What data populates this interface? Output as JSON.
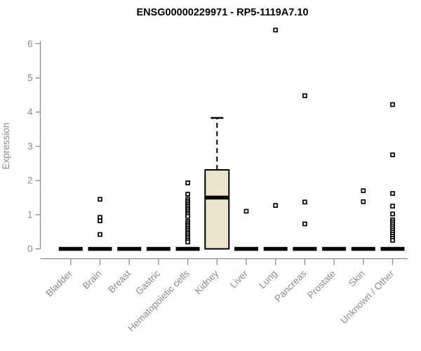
{
  "colors": {
    "background": "#ffffff",
    "title": "#000000",
    "axis": "#8c8c8c",
    "box_fill": "#EAE5CD",
    "box_stroke": "#000000",
    "outlier_fill": "#ffffff"
  },
  "chart_data": {
    "type": "boxplot",
    "title": "ENSG00000229971 - RP5-1119A7.10",
    "xlabel": "",
    "ylabel": "Expression",
    "ylim": [
      0,
      6.5
    ],
    "yticks": [
      0,
      1,
      2,
      3,
      4,
      5,
      6
    ],
    "grid": false,
    "legend": "none",
    "categories": [
      "Bladder",
      "Brain",
      "Breast",
      "Gastric",
      "Hematopoietic cells",
      "Kidney",
      "Liver",
      "Lung",
      "Pancreas",
      "Prostate",
      "Skin",
      "Unknown / Other"
    ],
    "series": [
      {
        "name": "Bladder",
        "q1": 0,
        "median": 0,
        "q3": 0,
        "whisker_low": 0,
        "whisker_high": 0,
        "outliers": []
      },
      {
        "name": "Brain",
        "q1": 0,
        "median": 0,
        "q3": 0,
        "whisker_low": 0,
        "whisker_high": 0,
        "outliers": [
          1.45,
          0.92,
          0.82,
          0.42
        ]
      },
      {
        "name": "Breast",
        "q1": 0,
        "median": 0,
        "q3": 0,
        "whisker_low": 0,
        "whisker_high": 0,
        "outliers": []
      },
      {
        "name": "Gastric",
        "q1": 0,
        "median": 0,
        "q3": 0,
        "whisker_low": 0,
        "whisker_high": 0,
        "outliers": []
      },
      {
        "name": "Hematopoietic cells",
        "q1": 0,
        "median": 0,
        "q3": 0,
        "whisker_low": 0,
        "whisker_high": 0,
        "outliers": [
          1.93,
          1.6,
          1.45,
          1.4,
          1.35,
          1.3,
          1.25,
          1.2,
          1.15,
          1.1,
          1.05,
          1.0,
          0.95,
          0.8,
          0.75,
          0.7,
          0.65,
          0.6,
          0.55,
          0.5,
          0.45,
          0.4,
          0.35,
          0.3,
          0.25,
          0.2
        ]
      },
      {
        "name": "Kidney",
        "q1": 0,
        "median": 1.5,
        "q3": 2.31,
        "whisker_low": 0,
        "whisker_high": 3.83,
        "outliers": []
      },
      {
        "name": "Liver",
        "q1": 0,
        "median": 0,
        "q3": 0,
        "whisker_low": 0,
        "whisker_high": 0,
        "outliers": [
          1.1
        ]
      },
      {
        "name": "Lung",
        "q1": 0,
        "median": 0,
        "q3": 0,
        "whisker_low": 0,
        "whisker_high": 0,
        "outliers": [
          6.4,
          1.27
        ]
      },
      {
        "name": "Pancreas",
        "q1": 0,
        "median": 0,
        "q3": 0,
        "whisker_low": 0,
        "whisker_high": 0,
        "outliers": [
          4.48,
          1.37,
          0.73
        ]
      },
      {
        "name": "Prostate",
        "q1": 0,
        "median": 0,
        "q3": 0,
        "whisker_low": 0,
        "whisker_high": 0,
        "outliers": []
      },
      {
        "name": "Skin",
        "q1": 0,
        "median": 0,
        "q3": 0,
        "whisker_low": 0,
        "whisker_high": 0,
        "outliers": [
          1.7,
          1.38
        ]
      },
      {
        "name": "Unknown / Other",
        "q1": 0,
        "median": 0,
        "q3": 0,
        "whisker_low": 0,
        "whisker_high": 0,
        "outliers": [
          4.22,
          2.75,
          1.62,
          1.25,
          1.02,
          0.85,
          0.79,
          0.73,
          0.67,
          0.61,
          0.55,
          0.49,
          0.43,
          0.37,
          0.31,
          0.25
        ]
      }
    ]
  }
}
